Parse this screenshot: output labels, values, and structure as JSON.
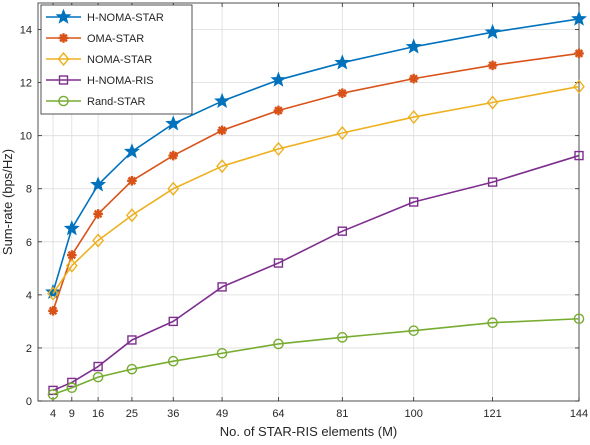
{
  "chart_data": {
    "type": "line",
    "title": "",
    "xlabel": "No. of STAR-RIS elements (M)",
    "ylabel": "Sum-rate (bps/Hz)",
    "x": [
      4,
      9,
      16,
      25,
      36,
      49,
      64,
      81,
      100,
      121,
      144
    ],
    "x_ticks": [
      4,
      9,
      16,
      25,
      36,
      49,
      64,
      81,
      100,
      121,
      144
    ],
    "xlim": [
      0,
      144
    ],
    "ylim": [
      0,
      15
    ],
    "y_ticks": [
      0,
      2,
      4,
      6,
      8,
      10,
      12,
      14
    ],
    "grid": true,
    "legend_position": "top-left",
    "series": [
      {
        "name": "H-NOMA-STAR",
        "color": "#0072BD",
        "marker": "star",
        "values": [
          4.1,
          6.5,
          8.15,
          9.4,
          10.45,
          11.3,
          12.1,
          12.75,
          13.35,
          13.9,
          14.4
        ]
      },
      {
        "name": "OMA-STAR",
        "color": "#D95319",
        "marker": "asterisk",
        "values": [
          3.4,
          5.5,
          7.05,
          8.3,
          9.25,
          10.2,
          10.95,
          11.6,
          12.15,
          12.65,
          13.1
        ]
      },
      {
        "name": "NOMA-STAR",
        "color": "#EDB120",
        "marker": "diamond",
        "values": [
          4.05,
          5.1,
          6.05,
          7.0,
          8.0,
          8.85,
          9.5,
          10.1,
          10.7,
          11.25,
          11.85
        ]
      },
      {
        "name": "H-NOMA-RIS",
        "color": "#7E2F8E",
        "marker": "square",
        "values": [
          0.4,
          0.7,
          1.3,
          2.3,
          3.0,
          4.3,
          5.2,
          6.4,
          7.5,
          8.25,
          9.25
        ]
      },
      {
        "name": "Rand-STAR",
        "color": "#77AC30",
        "marker": "circle",
        "values": [
          0.25,
          0.5,
          0.9,
          1.2,
          1.5,
          1.8,
          2.15,
          2.4,
          2.65,
          2.95,
          3.1
        ]
      }
    ]
  }
}
